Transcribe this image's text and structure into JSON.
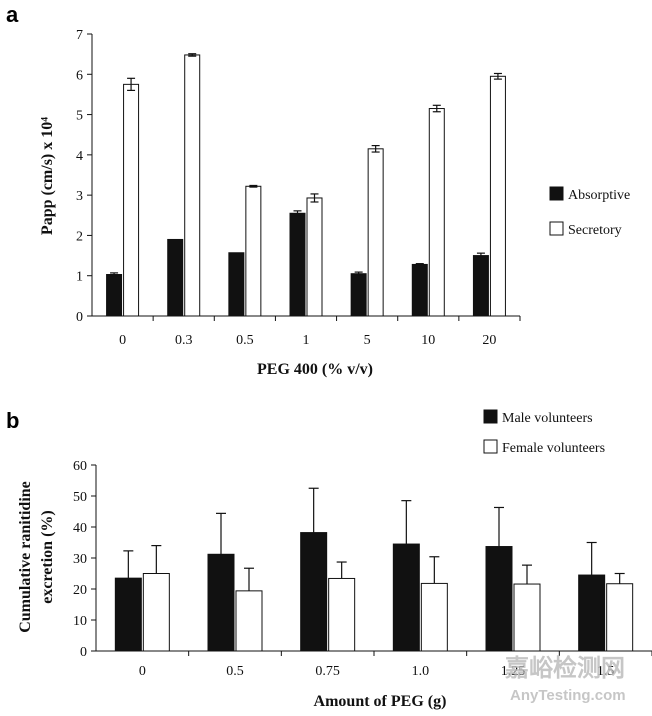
{
  "chart_data": [
    {
      "type": "bar",
      "panel": "a",
      "xlabel": "PEG 400 (% v/v)",
      "ylabel": "Papp (cm/s) x 10⁴",
      "ylim": [
        0,
        7
      ],
      "yticks": [
        "0",
        "1",
        "2",
        "3",
        "4",
        "5",
        "6",
        "7"
      ],
      "categories": [
        "0",
        "0.3",
        "0.5",
        "1",
        "5",
        "10",
        "20"
      ],
      "legend_position": "right",
      "series": [
        {
          "name": "Absorptive",
          "color": "#111111",
          "values": [
            1.03,
            1.9,
            1.57,
            2.55,
            1.05,
            1.28,
            1.5
          ],
          "errors": [
            0.04,
            0,
            0,
            0.06,
            0.04,
            0.02,
            0.06
          ]
        },
        {
          "name": "Secretory",
          "color": "#ffffff",
          "values": [
            5.75,
            6.48,
            3.22,
            2.93,
            4.15,
            5.15,
            5.95
          ],
          "errors": [
            0.15,
            0.03,
            0.02,
            0.1,
            0.08,
            0.08,
            0.07
          ]
        }
      ]
    },
    {
      "type": "bar",
      "panel": "b",
      "xlabel": "Amount of PEG (g)",
      "ylabel": "Cumulative ranitidine excretion (%)",
      "ylabel_lines": [
        "Cumulative ranitidine",
        "excretion (%)"
      ],
      "ylim": [
        0,
        60
      ],
      "yticks": [
        "0",
        "10",
        "20",
        "30",
        "40",
        "50",
        "60"
      ],
      "categories": [
        "0",
        "0.5",
        "0.75",
        "1.0",
        "1.25",
        "1.5"
      ],
      "legend_position": "top-right",
      "series": [
        {
          "name": "Male volunteers",
          "color": "#111111",
          "values": [
            23.5,
            31.2,
            38.2,
            34.5,
            33.7,
            24.5
          ],
          "errors": [
            8.8,
            13.2,
            14.3,
            14.0,
            12.6,
            10.5
          ]
        },
        {
          "name": "Female volunteers",
          "color": "#ffffff",
          "values": [
            25.0,
            19.4,
            23.4,
            21.8,
            21.6,
            21.7
          ],
          "errors": [
            9.0,
            7.3,
            5.3,
            8.6,
            6.1,
            3.3
          ]
        }
      ]
    }
  ],
  "watermark": {
    "cn": "嘉峪检测网",
    "en": "AnyTesting.com"
  }
}
